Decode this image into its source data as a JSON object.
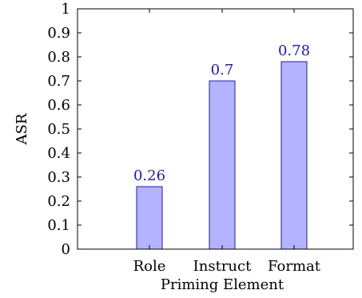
{
  "chart_data": {
    "type": "bar",
    "title": "",
    "xlabel": "Priming Element",
    "ylabel": "ASR",
    "categories": [
      "Role",
      "Instruct",
      "Format"
    ],
    "values": [
      0.26,
      0.7,
      0.78
    ],
    "value_labels": [
      "0.26",
      "0.7",
      "0.78"
    ],
    "ylim": [
      0,
      1
    ],
    "yticks": [
      0,
      0.1,
      0.2,
      0.3,
      0.4,
      0.5,
      0.6,
      0.7,
      0.8,
      0.9,
      1
    ],
    "ytick_labels": [
      "0",
      "0.1",
      "0.2",
      "0.3",
      "0.4",
      "0.5",
      "0.6",
      "0.7",
      "0.8",
      "0.9",
      "1"
    ],
    "grid": false,
    "colors": {
      "bar_fill": "#b3b3ff",
      "bar_stroke": "#1a1acc",
      "label": "#1a1acc",
      "axis": "#000000"
    }
  }
}
